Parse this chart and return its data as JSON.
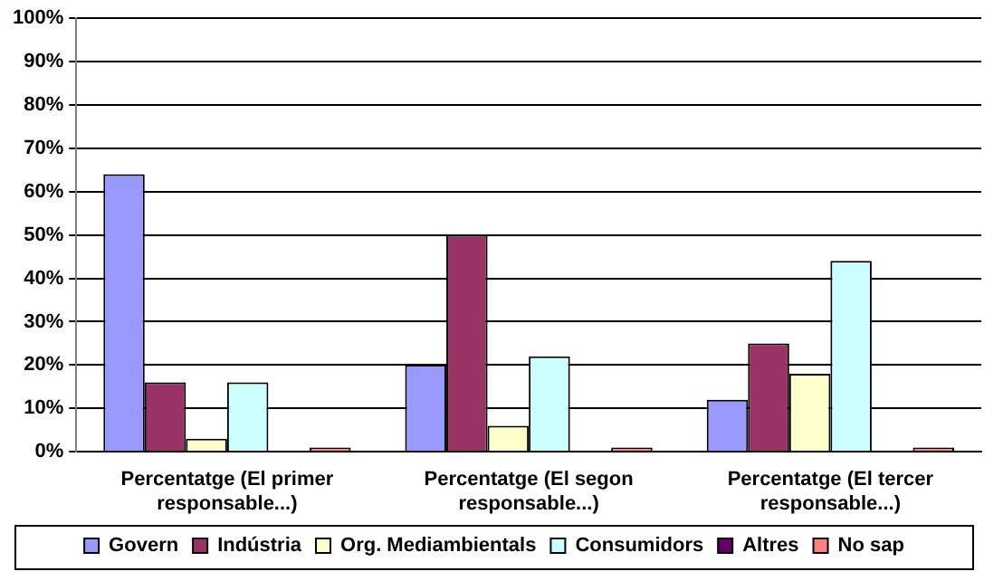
{
  "chart_data": {
    "type": "bar",
    "categories": [
      "Percentatge (El primer responsable...)",
      "Percentatge (El segon responsable...)",
      "Percentatge (El tercer responsable...)"
    ],
    "series": [
      {
        "name": "Govern",
        "color": "#9999ff",
        "values": [
          64,
          20,
          12
        ]
      },
      {
        "name": "Indústria",
        "color": "#993366",
        "values": [
          16,
          50,
          25
        ]
      },
      {
        "name": "Org. Mediambientals",
        "color": "#ffffcc",
        "values": [
          3,
          6,
          18
        ]
      },
      {
        "name": "Consumidors",
        "color": "#ccffff",
        "values": [
          16,
          22,
          44
        ]
      },
      {
        "name": "Altres",
        "color": "#660066",
        "values": [
          0,
          0,
          0
        ]
      },
      {
        "name": "No sap",
        "color": "#ff8080",
        "values": [
          1,
          1,
          1
        ]
      }
    ],
    "ylim": [
      0,
      100
    ],
    "yticks": [
      {
        "value": 0,
        "label": "0%"
      },
      {
        "value": 10,
        "label": "10%"
      },
      {
        "value": 20,
        "label": "20%"
      },
      {
        "value": 30,
        "label": "30%"
      },
      {
        "value": 40,
        "label": "40%"
      },
      {
        "value": 50,
        "label": "50%"
      },
      {
        "value": 60,
        "label": "60%"
      },
      {
        "value": 70,
        "label": "70%"
      },
      {
        "value": 80,
        "label": "80%"
      },
      {
        "value": 90,
        "label": "90%"
      },
      {
        "value": 100,
        "label": "100%"
      }
    ],
    "grid": "y",
    "legend": "bottom"
  }
}
